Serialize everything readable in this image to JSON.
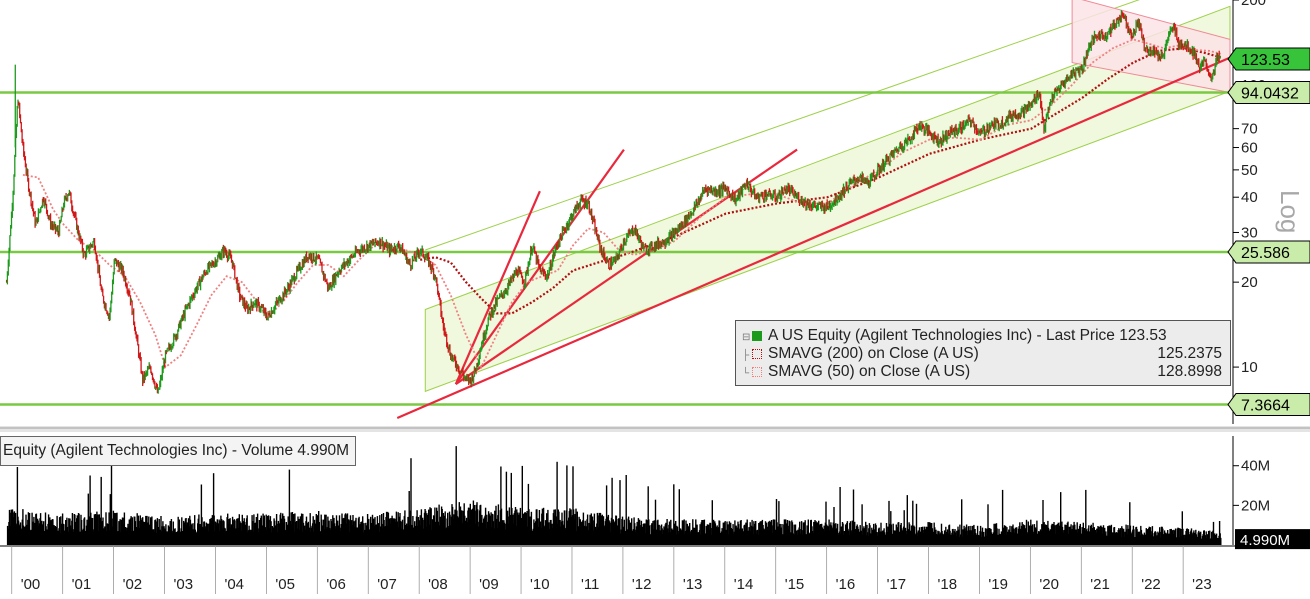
{
  "chart_data": [
    {
      "type": "line",
      "title": "A US Equity (Agilent Technologies Inc) - Last Price 123.53",
      "scale": "log",
      "ylabel": "Log",
      "ylim": [
        6.6,
        200
      ],
      "xlim": [
        1999.75,
        2023.9
      ],
      "y_ticks": [
        10,
        20,
        30,
        40,
        50,
        60,
        70,
        100,
        200
      ],
      "y_tick_labels": [
        "10",
        "20",
        "30",
        "40",
        "50",
        "60",
        "70",
        "100",
        "200"
      ],
      "x_tick_years": [
        2000,
        2001,
        2002,
        2003,
        2004,
        2005,
        2006,
        2007,
        2008,
        2009,
        2010,
        2011,
        2012,
        2013,
        2014,
        2015,
        2016,
        2017,
        2018,
        2019,
        2020,
        2021,
        2022,
        2023
      ],
      "x_tick_labels": [
        "'00",
        "'01",
        "'02",
        "'03",
        "'04",
        "'05",
        "'06",
        "'07",
        "'08",
        "'09",
        "'10",
        "'11",
        "'12",
        "'13",
        "'14",
        "'15",
        "'16",
        "'17",
        "'18",
        "'19",
        "'20",
        "'21",
        "'22",
        "'23"
      ],
      "grid": false,
      "series": [
        {
          "name": "A US Equity (Agilent Technologies Inc) - Last Price",
          "last": "123.53",
          "color": "#1c9a1c",
          "down_color": "#d01818",
          "x": [
            1999.88,
            2000.0,
            2000.1,
            2000.2,
            2000.3,
            2000.45,
            2000.6,
            2000.75,
            2000.9,
            2001.0,
            2001.1,
            2001.25,
            2001.4,
            2001.6,
            2001.75,
            2001.9,
            2002.0,
            2002.15,
            2002.3,
            2002.45,
            2002.55,
            2002.7,
            2002.85,
            2003.0,
            2003.2,
            2003.4,
            2003.6,
            2003.8,
            2004.0,
            2004.15,
            2004.3,
            2004.45,
            2004.6,
            2004.75,
            2004.9,
            2005.0,
            2005.2,
            2005.4,
            2005.6,
            2005.8,
            2006.0,
            2006.2,
            2006.4,
            2006.6,
            2006.8,
            2007.0,
            2007.2,
            2007.4,
            2007.6,
            2007.8,
            2008.0,
            2008.15,
            2008.3,
            2008.45,
            2008.6,
            2008.75,
            2008.9,
            2009.0,
            2009.1,
            2009.2,
            2009.35,
            2009.5,
            2009.7,
            2009.9,
            2010.05,
            2010.2,
            2010.35,
            2010.5,
            2010.65,
            2010.8,
            2011.0,
            2011.15,
            2011.3,
            2011.45,
            2011.55,
            2011.7,
            2011.85,
            2012.0,
            2012.2,
            2012.4,
            2012.6,
            2012.8,
            2013.0,
            2013.2,
            2013.4,
            2013.6,
            2013.8,
            2014.0,
            2014.2,
            2014.4,
            2014.6,
            2014.8,
            2015.0,
            2015.2,
            2015.4,
            2015.6,
            2015.8,
            2016.0,
            2016.2,
            2016.4,
            2016.6,
            2016.8,
            2017.0,
            2017.2,
            2017.4,
            2017.6,
            2017.8,
            2018.0,
            2018.2,
            2018.4,
            2018.6,
            2018.8,
            2019.0,
            2019.2,
            2019.4,
            2019.6,
            2019.8,
            2020.0,
            2020.15,
            2020.25,
            2020.4,
            2020.6,
            2020.8,
            2021.0,
            2021.15,
            2021.3,
            2021.45,
            2021.6,
            2021.7,
            2021.8,
            2021.9,
            2022.0,
            2022.1,
            2022.2,
            2022.3,
            2022.4,
            2022.5,
            2022.6,
            2022.7,
            2022.8,
            2022.9,
            2023.0,
            2023.1,
            2023.2,
            2023.3,
            2023.4,
            2023.55,
            2023.65,
            2023.72
          ],
          "values": [
            20,
            40,
            90,
            60,
            45,
            32,
            40,
            32,
            30,
            38,
            42,
            32,
            25,
            28,
            18,
            15,
            24,
            22,
            18,
            12,
            9,
            10,
            8,
            11,
            13,
            16,
            19,
            22,
            24,
            26,
            24,
            18,
            16,
            17,
            16,
            15,
            17,
            19,
            22,
            25,
            24,
            19,
            22,
            24,
            26,
            27,
            28,
            26,
            27,
            23,
            26,
            24,
            21,
            14,
            11,
            10,
            9,
            9,
            10,
            12,
            15,
            17,
            19,
            22,
            20,
            27,
            22,
            21,
            26,
            30,
            35,
            39,
            38,
            30,
            26,
            23,
            24,
            28,
            31,
            26,
            27,
            28,
            30,
            33,
            37,
            43,
            42,
            43,
            39,
            45,
            40,
            41,
            40,
            43,
            40,
            38,
            37,
            37,
            40,
            44,
            47,
            45,
            50,
            55,
            60,
            64,
            72,
            68,
            63,
            68,
            70,
            75,
            67,
            72,
            73,
            78,
            80,
            85,
            95,
            70,
            90,
            100,
            110,
            115,
            140,
            150,
            150,
            160,
            170,
            180,
            160,
            150,
            170,
            140,
            130,
            135,
            125,
            130,
            150,
            160,
            140,
            140,
            135,
            130,
            115,
            120,
            105,
            125,
            123.53
          ]
        },
        {
          "name": "SMAVG (200)  on Close (A US)",
          "last": "125.2375",
          "color": "#b01010",
          "x": [
            2008.0,
            2008.3,
            2008.6,
            2008.9,
            2009.2,
            2009.5,
            2009.8,
            2010.2,
            2010.6,
            2011.0,
            2011.5,
            2012.0,
            2013.0,
            2014.0,
            2015.0,
            2016.0,
            2017.0,
            2018.0,
            2019.0,
            2020.0,
            2021.0,
            2021.5,
            2022.0,
            2022.5,
            2023.0,
            2023.4,
            2023.72
          ],
          "values": [
            24,
            24.5,
            23.5,
            20,
            17.5,
            15.5,
            15.5,
            17,
            19,
            22,
            23.5,
            25,
            29,
            35,
            38,
            40,
            47,
            57,
            64,
            70,
            90,
            105,
            120,
            132,
            135,
            130,
            125.2375
          ]
        },
        {
          "name": "SMAVG (50)  on Close (A US)",
          "last": "128.8998",
          "color": "#f08080",
          "x": [
            2000.2,
            2000.5,
            2000.8,
            2001.0,
            2001.3,
            2001.6,
            2001.9,
            2002.2,
            2002.5,
            2002.8,
            2003.0,
            2003.3,
            2003.6,
            2003.9,
            2004.2,
            2004.5,
            2004.8,
            2005.0,
            2005.3,
            2005.6,
            2005.9,
            2006.2,
            2006.5,
            2006.8,
            2007.1,
            2007.4,
            2007.7,
            2008.0,
            2008.3,
            2008.6,
            2008.9,
            2009.2,
            2009.5,
            2009.8,
            2010.1,
            2010.4,
            2010.7,
            2011.0,
            2011.3,
            2011.6,
            2011.9,
            2012.2,
            2012.6,
            2013.0,
            2013.5,
            2014.0,
            2014.5,
            2015.0,
            2015.5,
            2016.0,
            2016.5,
            2017.0,
            2017.5,
            2018.0,
            2018.5,
            2019.0,
            2019.5,
            2020.0,
            2020.4,
            2020.8,
            2021.2,
            2021.6,
            2022.0,
            2022.3,
            2022.6,
            2022.9,
            2023.2,
            2023.5,
            2023.72
          ],
          "values": [
            48,
            47,
            36,
            32,
            28,
            26,
            23,
            21,
            17,
            13,
            10,
            11,
            14,
            18,
            21,
            20,
            17,
            15,
            17,
            20,
            23,
            23,
            21,
            24,
            27,
            27,
            26,
            25,
            23,
            18,
            13,
            10,
            13,
            17,
            20,
            21,
            22,
            27,
            31,
            30,
            26,
            25,
            26,
            28,
            34,
            40,
            41,
            41,
            38,
            38,
            44,
            50,
            58,
            64,
            65,
            64,
            72,
            75,
            85,
            100,
            120,
            135,
            145,
            140,
            135,
            138,
            133,
            132,
            128.8998
          ]
        },
        {
          "name": "Equity (Agilent Technologies Inc) - Volume",
          "last": "4.990M",
          "color": "#000000",
          "y_ticks": [
            20,
            40
          ],
          "y_tick_labels": [
            "20M",
            "40M"
          ],
          "ylim": [
            0,
            55
          ],
          "x": [
            2000,
            2001,
            2002,
            2003,
            2004,
            2005,
            2006,
            2007,
            2008,
            2009,
            2010,
            2011,
            2012,
            2013,
            2014,
            2015,
            2016,
            2017,
            2018,
            2019,
            2020,
            2021,
            2022,
            2023,
            2023.72
          ],
          "values": [
            13,
            11,
            12,
            10,
            11,
            11,
            12,
            11,
            13,
            16,
            13,
            13,
            10,
            9,
            9,
            9,
            9,
            8,
            8,
            7,
            9,
            8,
            7,
            6,
            4.99
          ]
        }
      ],
      "annotations": [
        {
          "label": "123.53",
          "value": 123.53,
          "style": "last-price"
        },
        {
          "label": "94.0432",
          "value": 94.0432,
          "style": "level"
        },
        {
          "label": "25.586",
          "value": 25.586,
          "style": "level"
        },
        {
          "label": "7.3664",
          "value": 7.3664,
          "style": "level"
        }
      ]
    }
  ]
}
